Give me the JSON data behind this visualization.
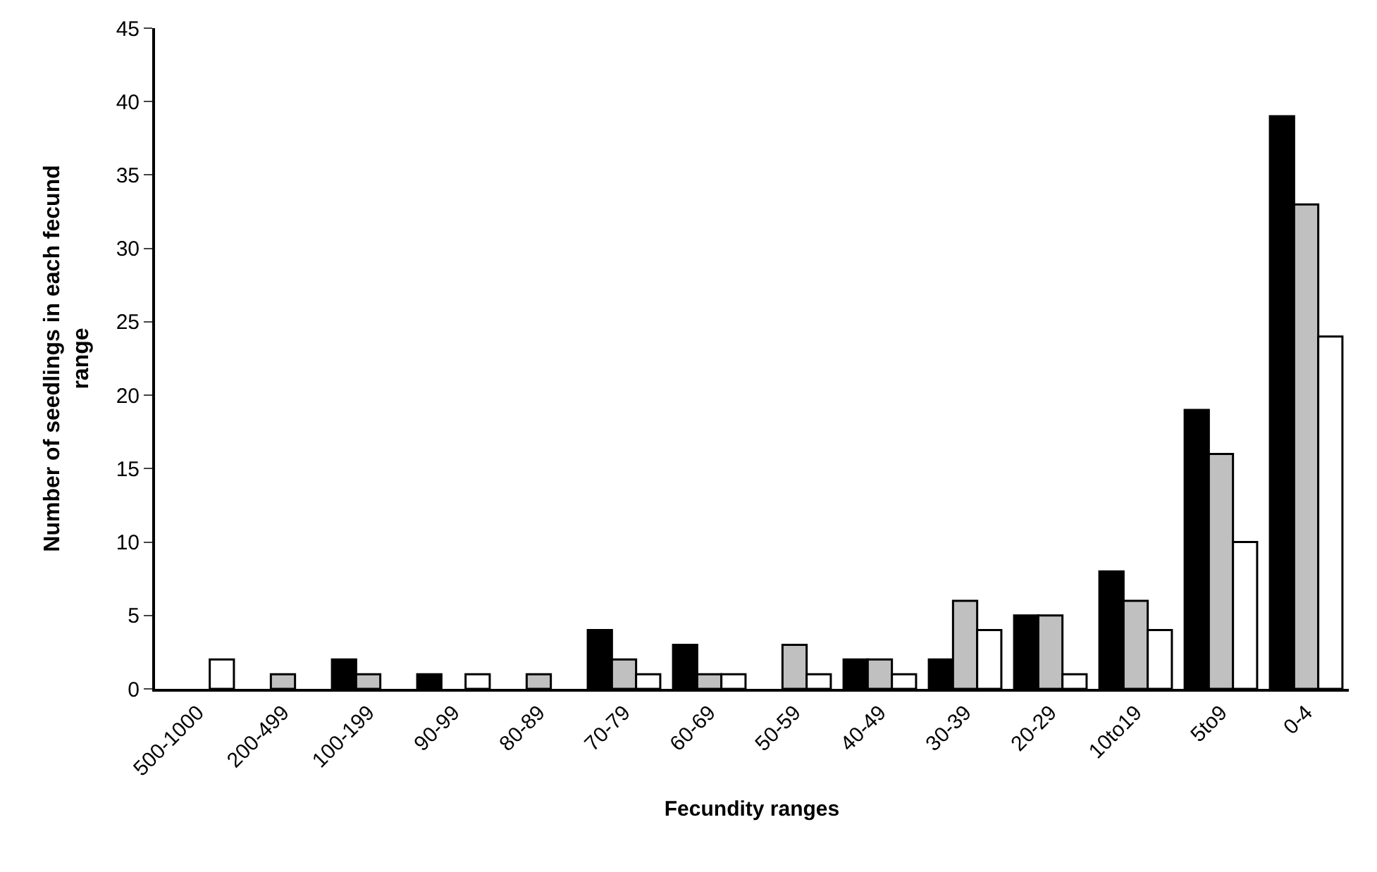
{
  "chart_data": {
    "type": "bar",
    "xlabel": "Fecundity ranges",
    "ylabel": "Number of seedlings in each fecund range",
    "categories": [
      "500-1000",
      "200-499",
      "100-199",
      "90-99",
      "80-89",
      "70-79",
      "60-69",
      "50-59",
      "40-49",
      "30-39",
      "20-29",
      "10to19",
      "5to9",
      "0-4"
    ],
    "series": [
      {
        "color": "#000000",
        "values": [
          0,
          0,
          2,
          1,
          0,
          4,
          3,
          0,
          2,
          2,
          5,
          8,
          19,
          39
        ]
      },
      {
        "color": "#c0c0c0",
        "values": [
          0,
          1,
          1,
          0,
          1,
          2,
          1,
          3,
          2,
          6,
          5,
          6,
          16,
          33
        ]
      },
      {
        "color": "#ffffff",
        "values": [
          2,
          0,
          0,
          1,
          0,
          1,
          1,
          1,
          1,
          4,
          1,
          4,
          10,
          24
        ]
      }
    ],
    "ylim": [
      0,
      45
    ],
    "yticks": [
      0,
      5,
      10,
      15,
      20,
      25,
      30,
      35,
      40,
      45
    ],
    "grid": false,
    "legend": false
  }
}
